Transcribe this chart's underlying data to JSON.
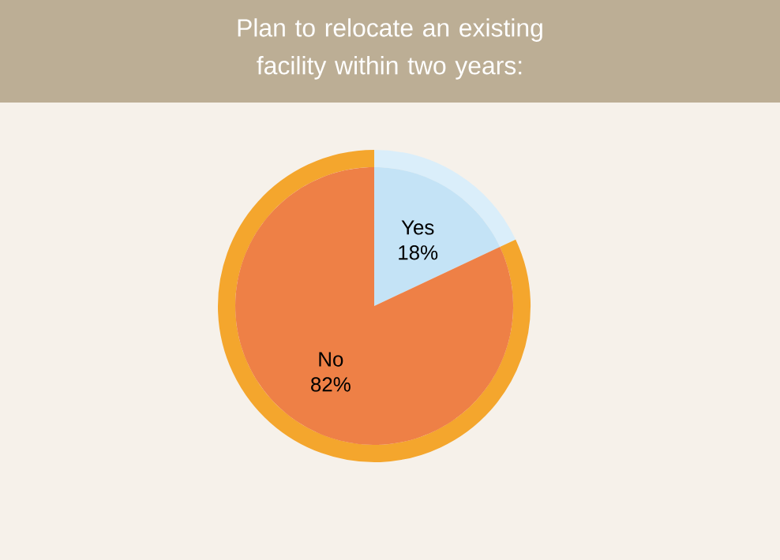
{
  "chart_data": {
    "type": "pie",
    "title": "Plan to relocate an existing facility within two years:",
    "categories": [
      "Yes",
      "No"
    ],
    "values": [
      18,
      82
    ],
    "colors": [
      "#c4e3f6",
      "#ee8046"
    ],
    "value_labels": [
      "18%",
      "82%"
    ]
  }
}
